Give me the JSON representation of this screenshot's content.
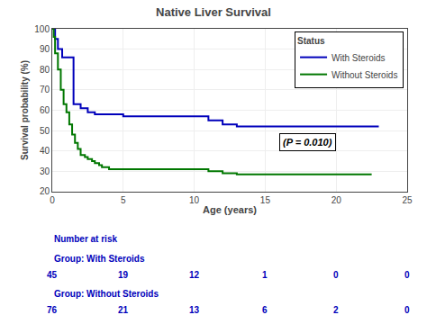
{
  "chart_data": {
    "type": "step",
    "title": "Native Liver Survival",
    "xlabel": "Age (years)",
    "ylabel": "Survival probability (%)",
    "xlim": [
      0,
      25
    ],
    "ylim": [
      20,
      100
    ],
    "xticks": [
      0,
      5,
      10,
      15,
      20,
      25
    ],
    "yticks": [
      20,
      30,
      40,
      50,
      60,
      70,
      80,
      90,
      100
    ],
    "grid": true,
    "legend": "upper right",
    "legend_title": "Status",
    "annotations": [
      "(P = 0.010)"
    ],
    "series": [
      {
        "name": "With Steroids",
        "color": "#0000bb",
        "x": [
          0,
          0.05,
          0.2,
          0.4,
          0.7,
          0.9,
          1.0,
          1.5,
          2.0,
          2.5,
          3.0,
          5.0,
          5.5,
          10.0,
          11.0,
          12.0,
          13.0,
          16.5,
          23.0
        ],
        "values": [
          100,
          100,
          95,
          90,
          86,
          86,
          86,
          63,
          61,
          59,
          58,
          57,
          57,
          57,
          55,
          53,
          52,
          52,
          52
        ]
      },
      {
        "name": "Without Steroids",
        "color": "#007700",
        "x": [
          0,
          0.1,
          0.2,
          0.4,
          0.6,
          0.8,
          1.0,
          1.2,
          1.4,
          1.6,
          1.8,
          2.0,
          2.3,
          2.5,
          2.8,
          3.0,
          3.3,
          3.5,
          3.8,
          4.0,
          4.3,
          4.5,
          4.8,
          5.0,
          5.5,
          6.0,
          7.0,
          8.0,
          9.0,
          10.0,
          11.0,
          12.0,
          13.0,
          14.0,
          15.0,
          16.0,
          17.0,
          22.5
        ],
        "values": [
          100,
          96,
          88,
          80,
          70,
          63,
          59,
          53,
          48,
          44,
          41,
          38,
          37,
          36,
          35,
          34,
          33,
          32,
          32,
          31,
          31,
          31,
          31,
          31,
          31,
          31,
          31,
          31,
          31,
          31,
          30,
          29,
          28.5,
          28.5,
          28.5,
          28.5,
          28.5,
          28.5
        ]
      }
    ],
    "risk_table": {
      "title": "Number at risk",
      "color": "#0000bb",
      "x": [
        0,
        5,
        10,
        15,
        20,
        25
      ],
      "rows": [
        {
          "label": "Group: With Steroids",
          "values": [
            45,
            19,
            12,
            1,
            0,
            0
          ]
        },
        {
          "label": "Group: Without Steroids",
          "values": [
            76,
            21,
            13,
            6,
            2,
            0
          ]
        }
      ]
    }
  }
}
